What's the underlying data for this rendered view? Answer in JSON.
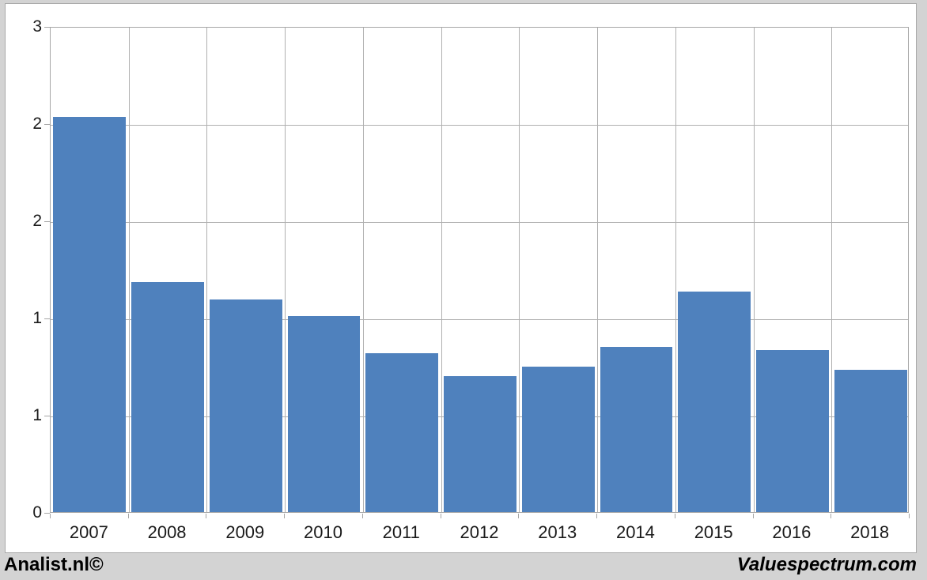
{
  "footer": {
    "left_brand": "Analist.nl©",
    "right_brand": "Valuespectrum.com"
  },
  "colors": {
    "bar": "#4f81bd",
    "gridline": "#b0b0b0",
    "plot_border": "#a6a6a6",
    "frame_background": "#d3d3d3",
    "canvas_background": "#ffffff",
    "text": "#1a1a1a"
  },
  "chart_data": {
    "type": "bar",
    "title": "",
    "xlabel": "",
    "ylabel": "",
    "categories": [
      "2007",
      "2008",
      "2009",
      "2010",
      "2011",
      "2012",
      "2013",
      "2014",
      "2015",
      "2016",
      "2018"
    ],
    "values": [
      2.44,
      1.42,
      1.31,
      1.21,
      0.98,
      0.84,
      0.9,
      1.02,
      1.36,
      1.0,
      0.88
    ],
    "ylim": [
      0,
      3
    ],
    "y_tick_interval": 0.6,
    "y_ticks": [
      {
        "value": 3.0,
        "label": "3"
      },
      {
        "value": 2.4,
        "label": "2"
      },
      {
        "value": 1.8,
        "label": "2"
      },
      {
        "value": 1.2,
        "label": "1"
      },
      {
        "value": 0.6,
        "label": "1"
      },
      {
        "value": 0.0,
        "label": "0"
      }
    ],
    "grid": "horizontal-and-vertical-category-boundaries",
    "legend": "none",
    "bar_color": "#4f81bd",
    "bar_gap_fraction": 0.07
  }
}
